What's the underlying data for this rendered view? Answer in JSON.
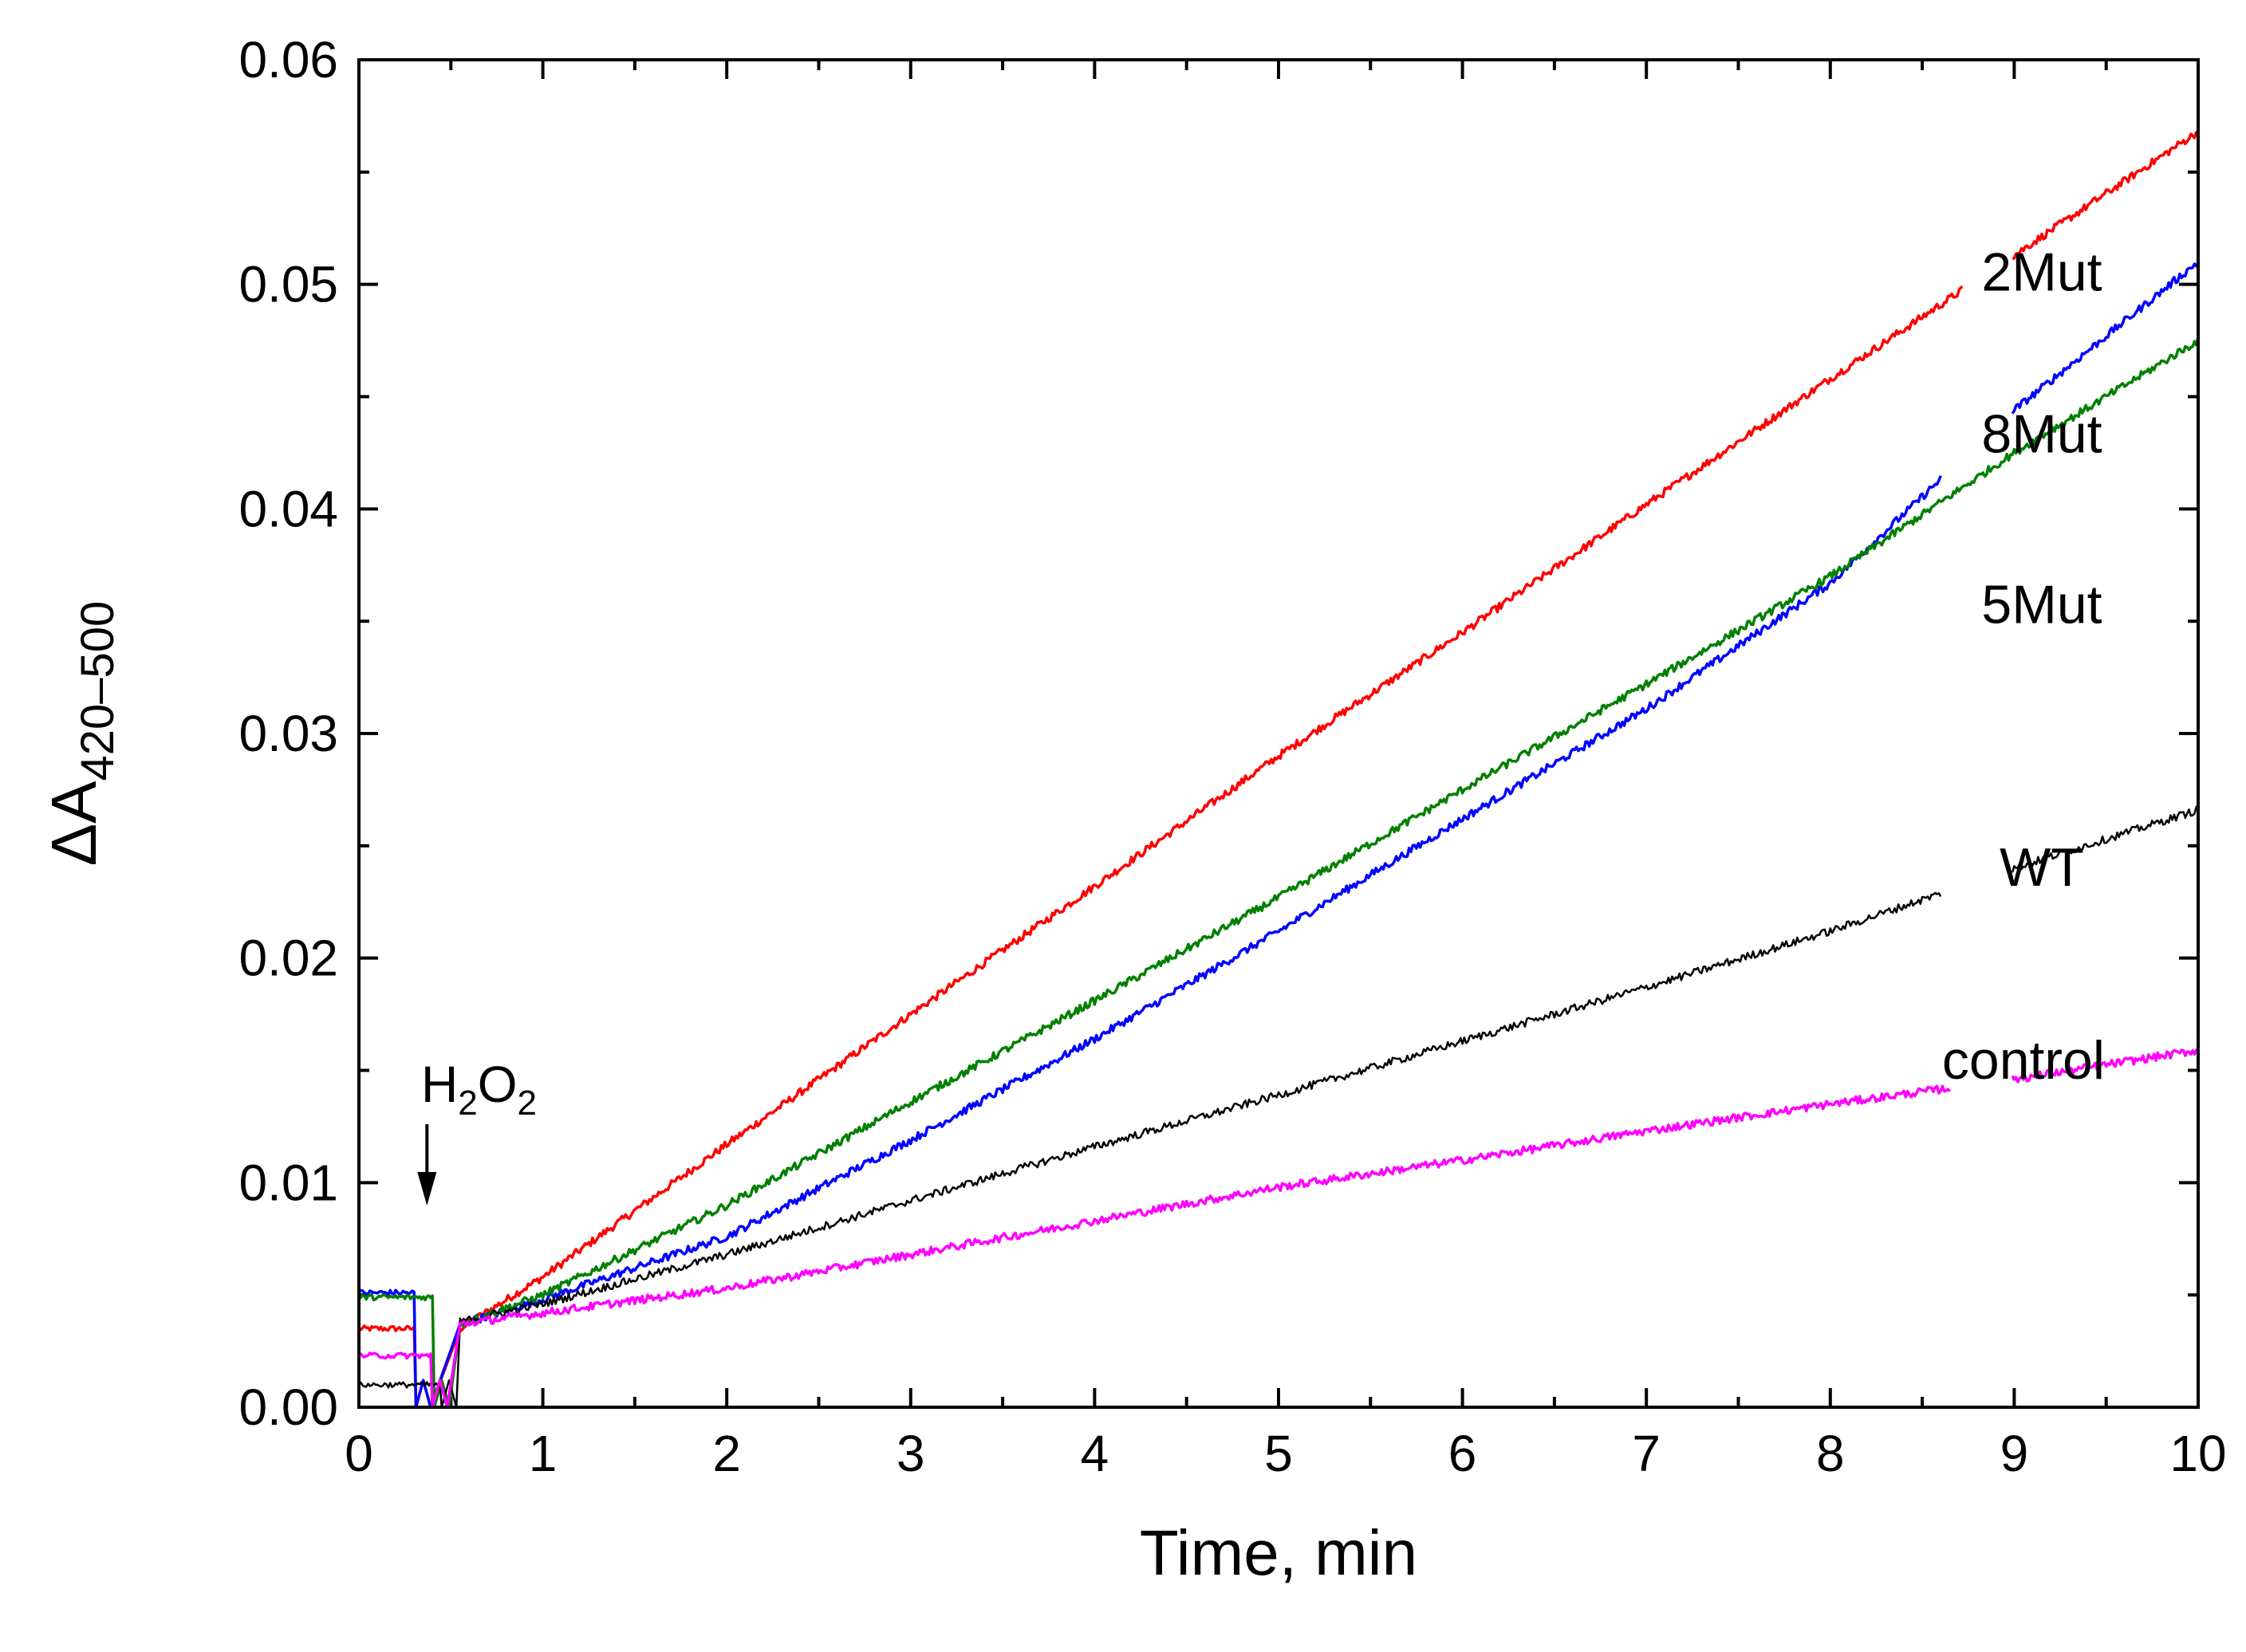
{
  "chart_data": {
    "type": "line",
    "title": "",
    "xlabel": "Time, min",
    "ylabel": "ΔA",
    "ylabel_sub": "420–500",
    "xlim": [
      0,
      10
    ],
    "ylim": [
      0,
      0.06
    ],
    "x_ticks": [
      "0",
      "1",
      "2",
      "3",
      "4",
      "5",
      "6",
      "7",
      "8",
      "9",
      "10"
    ],
    "y_ticks": [
      "0.00",
      "0.01",
      "0.02",
      "0.03",
      "0.04",
      "0.05",
      "0.06"
    ],
    "annotation": {
      "text": "H",
      "sub1": "2",
      "mid": "O",
      "sub2": "2",
      "x": 0.37
    },
    "series": [
      {
        "name": "2Mut",
        "color": "#ff0000",
        "pre": 0.0035,
        "points": [
          [
            0.55,
            0.0035
          ],
          [
            1,
            0.0058
          ],
          [
            2,
            0.0117
          ],
          [
            3,
            0.0175
          ],
          [
            4,
            0.0232
          ],
          [
            5,
            0.029
          ],
          [
            6,
            0.0345
          ],
          [
            7,
            0.0402
          ],
          [
            8,
            0.0458
          ],
          [
            9,
            0.0513
          ],
          [
            10,
            0.0568
          ]
        ]
      },
      {
        "name": "8Mut",
        "color": "#0000ff",
        "pre": 0.0051,
        "points": [
          [
            0.55,
            0.0037
          ],
          [
            1,
            0.0048
          ],
          [
            2,
            0.0076
          ],
          [
            3,
            0.0119
          ],
          [
            4,
            0.0164
          ],
          [
            5,
            0.0212
          ],
          [
            6,
            0.0262
          ],
          [
            7,
            0.0311
          ],
          [
            8,
            0.0367
          ],
          [
            9,
            0.0444
          ],
          [
            10,
            0.051
          ]
        ]
      },
      {
        "name": "5Mut",
        "color": "#008000",
        "pre": 0.0049,
        "points": [
          [
            0.55,
            0.0037
          ],
          [
            1,
            0.005
          ],
          [
            2,
            0.009
          ],
          [
            3,
            0.0136
          ],
          [
            4,
            0.0181
          ],
          [
            5,
            0.0227
          ],
          [
            6,
            0.0275
          ],
          [
            7,
            0.0322
          ],
          [
            8,
            0.037
          ],
          [
            9,
            0.0425
          ],
          [
            10,
            0.0475
          ]
        ]
      },
      {
        "name": "WT",
        "color": "#000000",
        "pre": 0.001,
        "points": [
          [
            0.55,
            0.0038
          ],
          [
            1,
            0.0046
          ],
          [
            2,
            0.0068
          ],
          [
            3,
            0.0092
          ],
          [
            4,
            0.0116
          ],
          [
            5,
            0.0139
          ],
          [
            6,
            0.0163
          ],
          [
            7,
            0.0187
          ],
          [
            8,
            0.0212
          ],
          [
            9,
            0.024
          ],
          [
            10,
            0.0266
          ]
        ]
      },
      {
        "name": "control",
        "color": "#ff00ff",
        "pre": 0.0023,
        "points": [
          [
            0.55,
            0.0037
          ],
          [
            1,
            0.0042
          ],
          [
            2,
            0.0053
          ],
          [
            3,
            0.0068
          ],
          [
            4,
            0.0083
          ],
          [
            5,
            0.0098
          ],
          [
            6,
            0.011
          ],
          [
            7,
            0.0123
          ],
          [
            8,
            0.0135
          ],
          [
            9,
            0.0146
          ],
          [
            10,
            0.0159
          ]
        ]
      }
    ]
  }
}
